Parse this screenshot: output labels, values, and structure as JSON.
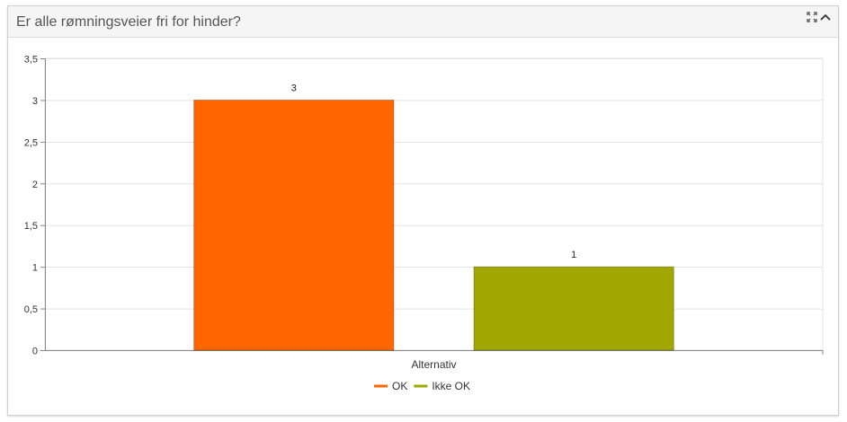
{
  "panel": {
    "title": "Er alle rømningsveier fri for hinder?",
    "icons": [
      "expand-icon",
      "collapse-chevron-icon"
    ]
  },
  "chart_data": {
    "type": "bar",
    "title": "",
    "xlabel": "Alternativ",
    "ylabel": "",
    "categories": [
      "Alternativ"
    ],
    "series": [
      {
        "name": "OK",
        "values": [
          3
        ],
        "color": "#ff6600"
      },
      {
        "name": "Ikke OK",
        "values": [
          1
        ],
        "color": "#a0a800"
      }
    ],
    "ylim": [
      0,
      3.5
    ],
    "yticks": [
      "0",
      "0,5",
      "1",
      "1,5",
      "2",
      "2,5",
      "3",
      "3,5"
    ],
    "data_labels": [
      "3",
      "1"
    ],
    "grid": true,
    "legend": "bottom"
  }
}
